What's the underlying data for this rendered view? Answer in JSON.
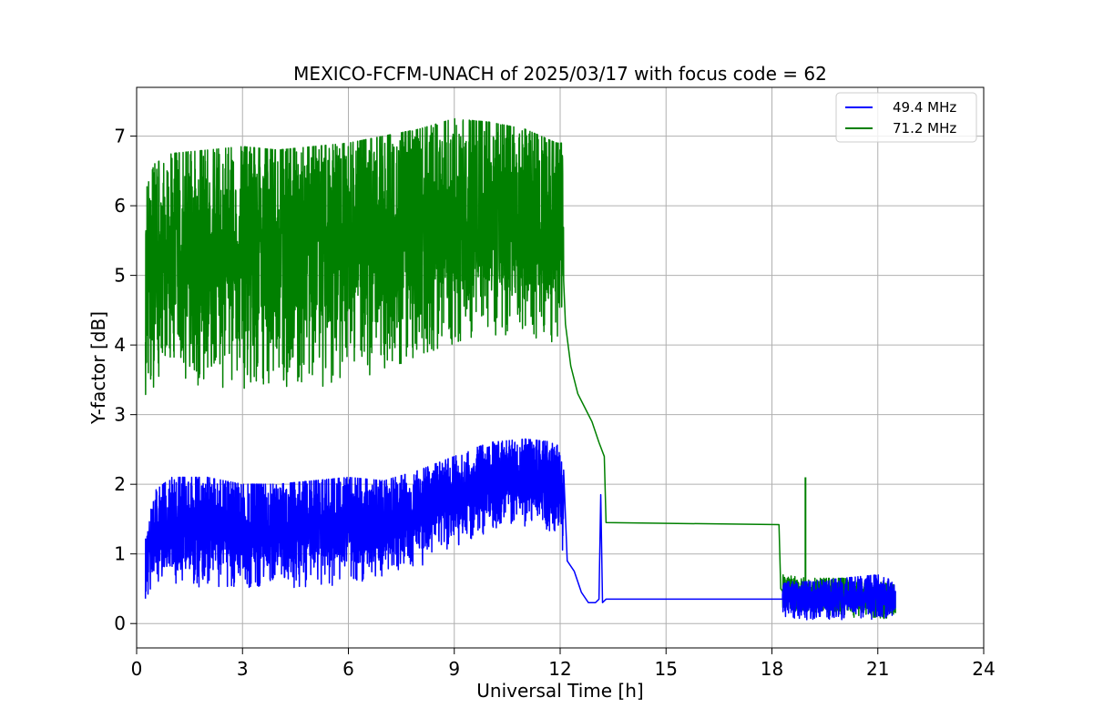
{
  "chart_data": {
    "type": "line",
    "title": "MEXICO-FCFM-UNACH of 2025/03/17 with focus code = 62",
    "xlabel": "Universal Time [h]",
    "ylabel": "Y-factor [dB]",
    "xlim": [
      0,
      24
    ],
    "ylim": [
      -0.35,
      7.7
    ],
    "xticks": [
      0,
      3,
      6,
      9,
      12,
      15,
      18,
      21,
      24
    ],
    "yticks": [
      0,
      1,
      2,
      3,
      4,
      5,
      6,
      7
    ],
    "grid": true,
    "legend_position": "top-right",
    "series": [
      {
        "name": "49.4 MHz",
        "color": "#0000ff",
        "sampled": false,
        "envelope": [
          {
            "x": 0.25,
            "low": 0.3,
            "high": 1.2
          },
          {
            "x": 0.5,
            "low": 0.6,
            "high": 1.9
          },
          {
            "x": 1.0,
            "low": 0.55,
            "high": 2.1
          },
          {
            "x": 2.0,
            "low": 0.5,
            "high": 2.1
          },
          {
            "x": 3.0,
            "low": 0.45,
            "high": 2.0
          },
          {
            "x": 4.0,
            "low": 0.5,
            "high": 2.0
          },
          {
            "x": 5.0,
            "low": 0.5,
            "high": 2.05
          },
          {
            "x": 6.0,
            "low": 0.55,
            "high": 2.1
          },
          {
            "x": 7.0,
            "low": 0.6,
            "high": 2.05
          },
          {
            "x": 8.0,
            "low": 0.8,
            "high": 2.2
          },
          {
            "x": 9.0,
            "low": 1.1,
            "high": 2.4
          },
          {
            "x": 10.0,
            "low": 1.3,
            "high": 2.6
          },
          {
            "x": 11.0,
            "low": 1.4,
            "high": 2.65
          },
          {
            "x": 11.9,
            "low": 1.3,
            "high": 2.6
          },
          {
            "x": 12.1,
            "low": 1.0,
            "high": 2.2
          }
        ],
        "points": [
          [
            12.2,
            0.9
          ],
          [
            12.4,
            0.75
          ],
          [
            12.6,
            0.45
          ],
          [
            12.8,
            0.3
          ],
          [
            13.0,
            0.3
          ],
          [
            13.1,
            0.35
          ],
          [
            13.15,
            1.85
          ],
          [
            13.2,
            0.3
          ],
          [
            13.3,
            0.35
          ],
          [
            18.3,
            0.35
          ]
        ],
        "tail_envelope": [
          {
            "x": 18.3,
            "low": 0.1,
            "high": 0.6
          },
          {
            "x": 19.0,
            "low": 0.05,
            "high": 0.6
          },
          {
            "x": 20.0,
            "low": 0.05,
            "high": 0.65
          },
          {
            "x": 21.0,
            "low": 0.05,
            "high": 0.7
          },
          {
            "x": 21.5,
            "low": 0.1,
            "high": 0.6
          }
        ]
      },
      {
        "name": "71.2 MHz",
        "color": "#008000",
        "sampled": false,
        "envelope": [
          {
            "x": 0.25,
            "low": 3.1,
            "high": 6.2
          },
          {
            "x": 0.5,
            "low": 3.4,
            "high": 6.6
          },
          {
            "x": 1.0,
            "low": 3.5,
            "high": 6.75
          },
          {
            "x": 2.0,
            "low": 3.4,
            "high": 6.8
          },
          {
            "x": 3.0,
            "low": 3.35,
            "high": 6.85
          },
          {
            "x": 4.0,
            "low": 3.3,
            "high": 6.8
          },
          {
            "x": 5.0,
            "low": 3.35,
            "high": 6.85
          },
          {
            "x": 6.0,
            "low": 3.4,
            "high": 6.9
          },
          {
            "x": 7.0,
            "low": 3.6,
            "high": 7.0
          },
          {
            "x": 8.0,
            "low": 3.8,
            "high": 7.1
          },
          {
            "x": 9.0,
            "low": 4.0,
            "high": 7.25
          },
          {
            "x": 10.0,
            "low": 4.1,
            "high": 7.2
          },
          {
            "x": 11.0,
            "low": 4.0,
            "high": 7.1
          },
          {
            "x": 11.9,
            "low": 3.95,
            "high": 6.9
          },
          {
            "x": 12.1,
            "low": 4.0,
            "high": 6.9
          }
        ],
        "points": [
          [
            12.15,
            4.3
          ],
          [
            12.3,
            3.7
          ],
          [
            12.5,
            3.3
          ],
          [
            12.7,
            3.1
          ],
          [
            12.9,
            2.9
          ],
          [
            13.1,
            2.6
          ],
          [
            13.25,
            2.4
          ],
          [
            13.3,
            1.45
          ],
          [
            18.2,
            1.42
          ],
          [
            18.25,
            0.5
          ]
        ],
        "tail_envelope": [
          {
            "x": 18.3,
            "low": 0.2,
            "high": 0.7
          },
          {
            "x": 19.0,
            "low": 0.15,
            "high": 0.65
          },
          {
            "x": 20.0,
            "low": 0.1,
            "high": 0.65
          },
          {
            "x": 21.0,
            "low": 0.05,
            "high": 0.6
          },
          {
            "x": 21.5,
            "low": 0.05,
            "high": 0.55
          }
        ],
        "spikes": [
          [
            18.95,
            2.1
          ]
        ]
      }
    ]
  }
}
